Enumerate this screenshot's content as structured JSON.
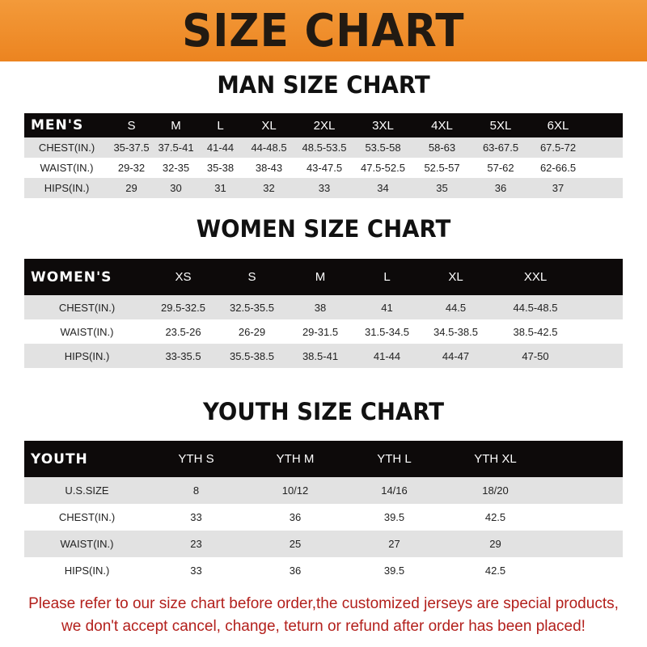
{
  "banner": "SIZE CHART",
  "men": {
    "title": "MAN SIZE CHART",
    "header": "MEN'S",
    "sizes": [
      "S",
      "M",
      "L",
      "XL",
      "2XL",
      "3XL",
      "4XL",
      "5XL",
      "6XL"
    ],
    "rows": [
      {
        "label": "CHEST(IN.)",
        "values": [
          "35-37.5",
          "37.5-41",
          "41-44",
          "44-48.5",
          "48.5-53.5",
          "53.5-58",
          "58-63",
          "63-67.5",
          "67.5-72"
        ]
      },
      {
        "label": "WAIST(IN.)",
        "values": [
          "29-32",
          "32-35",
          "35-38",
          "38-43",
          "43-47.5",
          "47.5-52.5",
          "52.5-57",
          "57-62",
          "62-66.5"
        ]
      },
      {
        "label": "HIPS(IN.)",
        "values": [
          "29",
          "30",
          "31",
          "32",
          "33",
          "34",
          "35",
          "36",
          "37"
        ]
      }
    ]
  },
  "women": {
    "title": "WOMEN SIZE CHART",
    "header": "WOMEN'S",
    "sizes": [
      "XS",
      "S",
      "M",
      "L",
      "XL",
      "XXL"
    ],
    "rows": [
      {
        "label": "CHEST(IN.)",
        "values": [
          "29.5-32.5",
          "32.5-35.5",
          "38",
          "41",
          "44.5",
          "44.5-48.5"
        ]
      },
      {
        "label": "WAIST(IN.)",
        "values": [
          "23.5-26",
          "26-29",
          "29-31.5",
          "31.5-34.5",
          "34.5-38.5",
          "38.5-42.5"
        ]
      },
      {
        "label": "HIPS(IN.)",
        "values": [
          "33-35.5",
          "35.5-38.5",
          "38.5-41",
          "41-44",
          "44-47",
          "47-50"
        ]
      }
    ]
  },
  "youth": {
    "title": "YOUTH SIZE CHART",
    "header": "YOUTH",
    "sizes": [
      "YTH S",
      "YTH M",
      "YTH L",
      "YTH XL"
    ],
    "rows": [
      {
        "label": "U.S.SIZE",
        "values": [
          "8",
          "10/12",
          "14/16",
          "18/20"
        ]
      },
      {
        "label": "CHEST(IN.)",
        "values": [
          "33",
          "36",
          "39.5",
          "42.5"
        ]
      },
      {
        "label": "WAIST(IN.)",
        "values": [
          "23",
          "25",
          "27",
          "29"
        ]
      },
      {
        "label": "HIPS(IN.)",
        "values": [
          "33",
          "36",
          "39.5",
          "42.5"
        ]
      }
    ]
  },
  "notice": [
    "Please refer to our size chart before order,the customized jerseys are special products,",
    "we don't accept cancel, change, teturn or refund after order has been placed!"
  ],
  "colors": {
    "banner": "#ee8b28",
    "header_row": "#0d0a0a",
    "stripe": "#e2e2e2",
    "notice": "#b3201c"
  }
}
